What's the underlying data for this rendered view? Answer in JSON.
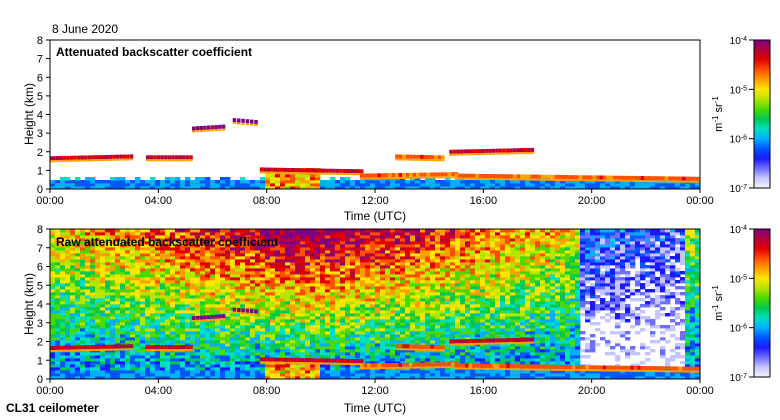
{
  "header": {
    "date": "8 June 2020"
  },
  "footer": {
    "instrument": "CL31 ceilometer"
  },
  "colorbar": {
    "unit_base": "m",
    "unit_exp1": "-1",
    "unit_mid": " sr",
    "unit_exp2": "-1",
    "ticks": [
      {
        "base": "10",
        "exp": "-4",
        "value": 0.0001
      },
      {
        "base": "10",
        "exp": "-5",
        "value": 1e-05
      },
      {
        "base": "10",
        "exp": "-6",
        "value": 1e-06
      },
      {
        "base": "10",
        "exp": "-7",
        "value": 1e-07
      }
    ],
    "colors": [
      "#f4f4ff",
      "#c6c6ff",
      "#6d6dff",
      "#1a1aff",
      "#0057ff",
      "#00b0ff",
      "#00e0c0",
      "#00c850",
      "#4cd800",
      "#b4e600",
      "#ffe600",
      "#ffa000",
      "#ff5000",
      "#e00000",
      "#b4003c",
      "#800080"
    ]
  },
  "chart_data": [
    {
      "type": "heatmap",
      "title": "Attenuated backscatter coefficient",
      "xlabel": "Time (UTC)",
      "ylabel": "Height (km)",
      "x_ticks": [
        "00:00",
        "04:00",
        "08:00",
        "12:00",
        "16:00",
        "20:00",
        "00:00"
      ],
      "xlim_hours": [
        0,
        24
      ],
      "y_ticks": [
        "0",
        "1",
        "2",
        "3",
        "4",
        "5",
        "6",
        "7",
        "8"
      ],
      "ylim": [
        0,
        8
      ],
      "colorscale": "log",
      "clim": [
        1e-07,
        0.0001
      ],
      "cloud_base_layers": [
        {
          "start_h": 0.0,
          "end_h": 3.0,
          "height_km": [
            1.65,
            1.75
          ],
          "level": "high"
        },
        {
          "start_h": 3.6,
          "end_h": 5.2,
          "height_km": [
            1.7,
            1.7
          ],
          "level": "high"
        },
        {
          "start_h": 7.8,
          "end_h": 11.5,
          "height_km": [
            1.05,
            0.95
          ],
          "level": "high"
        },
        {
          "start_h": 11.5,
          "end_h": 15.0,
          "height_km": [
            0.72,
            0.8
          ],
          "level": "mid"
        },
        {
          "start_h": 15.0,
          "end_h": 23.9,
          "height_km": [
            0.72,
            0.55
          ],
          "level": "mid"
        },
        {
          "start_h": 14.8,
          "end_h": 17.8,
          "height_km": [
            2.0,
            2.1
          ],
          "level": "high"
        },
        {
          "start_h": 12.8,
          "end_h": 14.5,
          "height_km": [
            1.75,
            1.7
          ],
          "level": "mid"
        },
        {
          "start_h": 5.3,
          "end_h": 6.4,
          "height_km": [
            3.25,
            3.35
          ],
          "level": "max"
        },
        {
          "start_h": 6.8,
          "end_h": 7.6,
          "height_km": [
            3.7,
            3.6
          ],
          "level": "max"
        }
      ],
      "boundary_layer_top_km": 0.45,
      "convective_plume": {
        "start_h": 8.0,
        "end_h": 10.0,
        "top_km": 1.1
      }
    },
    {
      "type": "heatmap",
      "title": "Raw attenuated backscatter coefficient",
      "xlabel": "Time (UTC)",
      "ylabel": "Height (km)",
      "x_ticks": [
        "00:00",
        "04:00",
        "08:00",
        "12:00",
        "16:00",
        "20:00",
        "00:00"
      ],
      "xlim_hours": [
        0,
        24
      ],
      "y_ticks": [
        "0",
        "1",
        "2",
        "3",
        "4",
        "5",
        "6",
        "7",
        "8"
      ],
      "ylim": [
        0,
        8
      ],
      "colorscale": "log",
      "clim": [
        1e-07,
        0.0001
      ],
      "noise_peak_hours": [
        8.5,
        11.0
      ],
      "cloud_base_layers": "same as upper panel"
    }
  ]
}
